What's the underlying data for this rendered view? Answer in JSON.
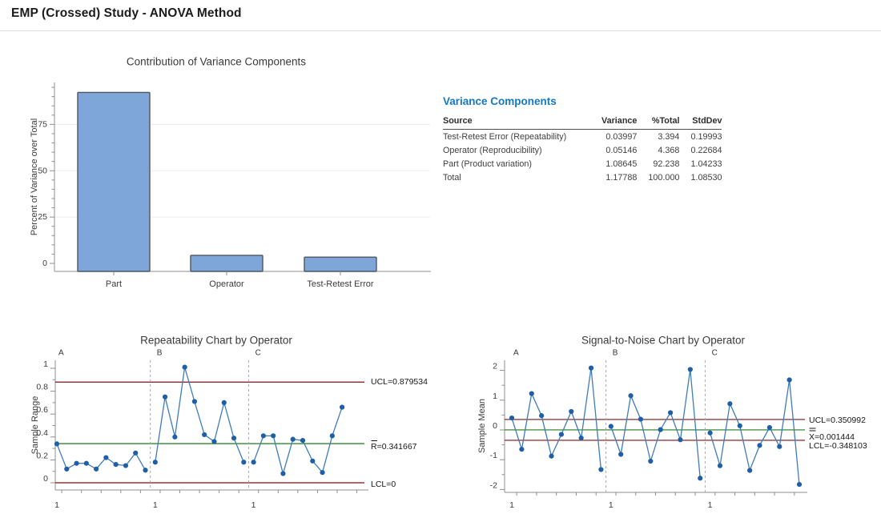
{
  "header": {
    "title": "EMP (Crossed) Study - ANOVA Method"
  },
  "variance_components": {
    "heading": "Variance Components",
    "columns": [
      "Source",
      "Variance",
      "%Total",
      "StdDev"
    ],
    "rows": [
      [
        "Test-Retest Error (Repeatability)",
        "0.03997",
        "3.394",
        "0.19993"
      ],
      [
        "Operator (Reproducibility)",
        "0.05146",
        "4.368",
        "0.22684"
      ],
      [
        "Part (Product variation)",
        "1.08645",
        "92.238",
        "1.04233"
      ],
      [
        "Total",
        "1.17788",
        "100.000",
        "1.08530"
      ]
    ]
  },
  "colors": {
    "heading_blue": "#1778c2",
    "bar_fill": "#7ea6d8",
    "bar_border": "#4e565e",
    "series_line": "#3f7cb8",
    "series_point": "#1f5fa6",
    "limit_line": "#7a1215",
    "center_line": "#1d7a1d",
    "axis": "#8f8f8f",
    "grid": "#ededed",
    "text": "#3b3b3b",
    "label_text": "#161616",
    "separator": "#a8a8a8"
  },
  "chart_data": [
    {
      "id": "contribution",
      "type": "bar",
      "title": "Contribution of Variance Components",
      "ylabel": "Percent of Variance over Total",
      "xlabel": "",
      "categories": [
        "Part",
        "Operator",
        "Test-Retest Error"
      ],
      "values": [
        92.238,
        4.368,
        3.394
      ],
      "yticks": [
        0,
        25,
        50,
        75
      ],
      "ylim": [
        0,
        97
      ],
      "grid": true,
      "legend": "none"
    },
    {
      "id": "repeatability",
      "type": "line",
      "title": "Repeatability Chart by Operator",
      "ylabel": "Sample Range",
      "xlabel": "",
      "yticks": [
        0,
        0.2,
        0.4,
        0.6,
        0.8,
        1
      ],
      "ylim": [
        -0.12,
        1.08
      ],
      "x_group_tick_label": "1",
      "groups": [
        {
          "label": "A",
          "values": [
            0.34,
            0.12,
            0.17,
            0.17,
            0.12,
            0.22,
            0.16,
            0.15,
            0.26,
            0.11
          ]
        },
        {
          "label": "B",
          "values": [
            0.18,
            0.75,
            0.4,
            1.01,
            0.71,
            0.42,
            0.36,
            0.7,
            0.39,
            0.18
          ]
        },
        {
          "label": "C",
          "values": [
            0.18,
            0.41,
            0.41,
            0.08,
            0.38,
            0.37,
            0.19,
            0.09,
            0.41,
            0.66
          ]
        }
      ],
      "control_lines": [
        {
          "label": "UCL=0.879534",
          "value": 0.879534,
          "type": "limit"
        },
        {
          "label": "R=0.341667",
          "value": 0.341667,
          "type": "center",
          "overbar": "single"
        },
        {
          "label": "LCL=0",
          "value": 0,
          "type": "limit"
        }
      ]
    },
    {
      "id": "signal_to_noise",
      "type": "line",
      "title": "Signal-to-Noise Chart by Operator",
      "ylabel": "Sample Mean",
      "xlabel": "",
      "yticks": [
        -2,
        -1,
        0,
        1,
        2
      ],
      "ylim": [
        -2.25,
        2.3
      ],
      "x_group_tick_label": "1",
      "groups": [
        {
          "label": "A",
          "values": [
            0.4,
            -0.65,
            1.22,
            0.48,
            -0.88,
            -0.15,
            0.62,
            -0.27,
            2.08,
            -1.33
          ]
        },
        {
          "label": "B",
          "values": [
            0.12,
            -0.82,
            1.15,
            0.36,
            -1.05,
            0.01,
            0.58,
            -0.33,
            2.03,
            -1.62
          ]
        },
        {
          "label": "C",
          "values": [
            -0.1,
            -1.2,
            0.88,
            0.14,
            -1.36,
            -0.52,
            0.08,
            -0.56,
            1.68,
            -1.83
          ]
        }
      ],
      "control_lines": [
        {
          "label": "UCL=0.350992",
          "value": 0.350992,
          "type": "limit"
        },
        {
          "label": "X=0.001444",
          "value": 0.001444,
          "type": "center",
          "overbar": "double"
        },
        {
          "label": "LCL=-0.348103",
          "value": -0.348103,
          "type": "limit"
        }
      ]
    }
  ]
}
